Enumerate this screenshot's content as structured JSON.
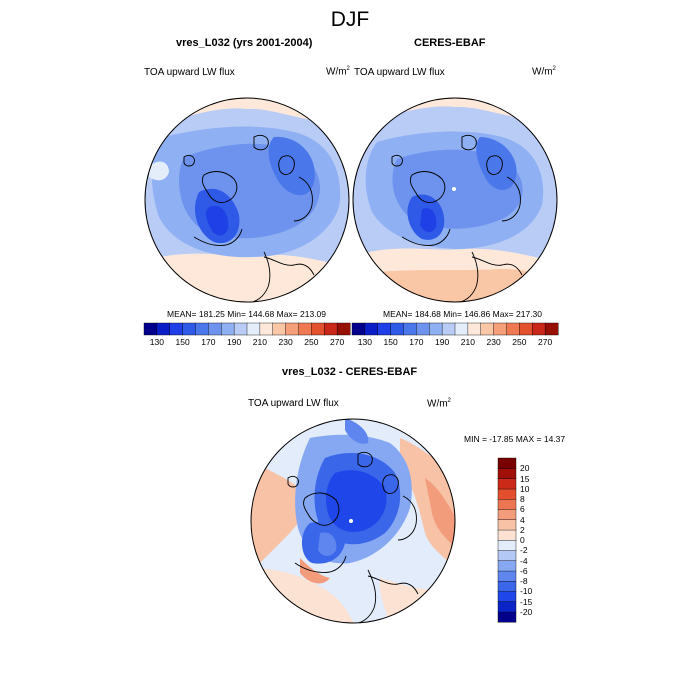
{
  "figure": {
    "title": "DJF"
  },
  "panels": [
    {
      "title": "vres_L032 (yrs 2001-2004)",
      "variable": "TOA upward LW flux",
      "units": "W/m",
      "units_sup": "2",
      "stats": "MEAN= 181.25  Min= 144.68  Max= 213.09"
    },
    {
      "title": "CERES-EBAF",
      "variable": "TOA upward LW flux",
      "units": "W/m",
      "units_sup": "2",
      "stats": "MEAN= 184.68  Min= 146.86  Max= 217.30"
    }
  ],
  "diff_panel": {
    "title": "vres_L032 - CERES-EBAF",
    "variable": "TOA upward LW flux",
    "units": "W/m",
    "units_sup": "2",
    "stats": "MIN = -17.85 MAX =  14.37"
  },
  "chart_data": [
    {
      "type": "heatmap",
      "projection": "north-polar-stereographic",
      "title": "vres_L032 (yrs 2001-2004)",
      "variable": "TOA upward LW flux",
      "units": "W/m2",
      "mean": 181.25,
      "min": 144.68,
      "max": 213.09,
      "colorbar": {
        "orientation": "horizontal",
        "levels": [
          130,
          140,
          150,
          160,
          170,
          180,
          190,
          200,
          210,
          220,
          230,
          240,
          250,
          260,
          270
        ],
        "tick_labels": [
          "130",
          "150",
          "170",
          "190",
          "210",
          "230",
          "250",
          "270"
        ],
        "colors": [
          "#00008c",
          "#0a1ec8",
          "#1e40e6",
          "#2f5ae8",
          "#4a77ea",
          "#6d93ee",
          "#8fb0f2",
          "#b8ccf6",
          "#e4eefa",
          "#fde8da",
          "#f9c6a6",
          "#f5a07a",
          "#ef7a52",
          "#e2522e",
          "#c8281a",
          "#961006"
        ]
      }
    },
    {
      "type": "heatmap",
      "projection": "north-polar-stereographic",
      "title": "CERES-EBAF",
      "variable": "TOA upward LW flux",
      "units": "W/m2",
      "mean": 184.68,
      "min": 146.86,
      "max": 217.3,
      "colorbar": {
        "orientation": "horizontal",
        "levels": [
          130,
          140,
          150,
          160,
          170,
          180,
          190,
          200,
          210,
          220,
          230,
          240,
          250,
          260,
          270
        ],
        "tick_labels": [
          "130",
          "150",
          "170",
          "190",
          "210",
          "230",
          "250",
          "270"
        ],
        "colors": [
          "#00008c",
          "#0a1ec8",
          "#1e40e6",
          "#2f5ae8",
          "#4a77ea",
          "#6d93ee",
          "#8fb0f2",
          "#b8ccf6",
          "#e4eefa",
          "#fde8da",
          "#f9c6a6",
          "#f5a07a",
          "#ef7a52",
          "#e2522e",
          "#c8281a",
          "#961006"
        ]
      }
    },
    {
      "type": "heatmap",
      "projection": "north-polar-stereographic",
      "title": "vres_L032 - CERES-EBAF",
      "variable": "TOA upward LW flux",
      "units": "W/m2",
      "min": -17.85,
      "max": 14.37,
      "colorbar": {
        "orientation": "vertical",
        "levels": [
          "-20",
          "-15",
          "-10",
          "-8",
          "-6",
          "-4",
          "-2",
          "0",
          "2",
          "4",
          "6",
          "8",
          "10",
          "15",
          "20"
        ],
        "colors": [
          "#00008c",
          "#0a24c8",
          "#1e46e8",
          "#3a66ea",
          "#5e86ee",
          "#86a8f2",
          "#b4c8f6",
          "#e2ecfa",
          "#fbe2d2",
          "#f7c2a6",
          "#f29c7c",
          "#ec7652",
          "#e4502e",
          "#cc2a18",
          "#a01008",
          "#780000"
        ]
      }
    }
  ]
}
